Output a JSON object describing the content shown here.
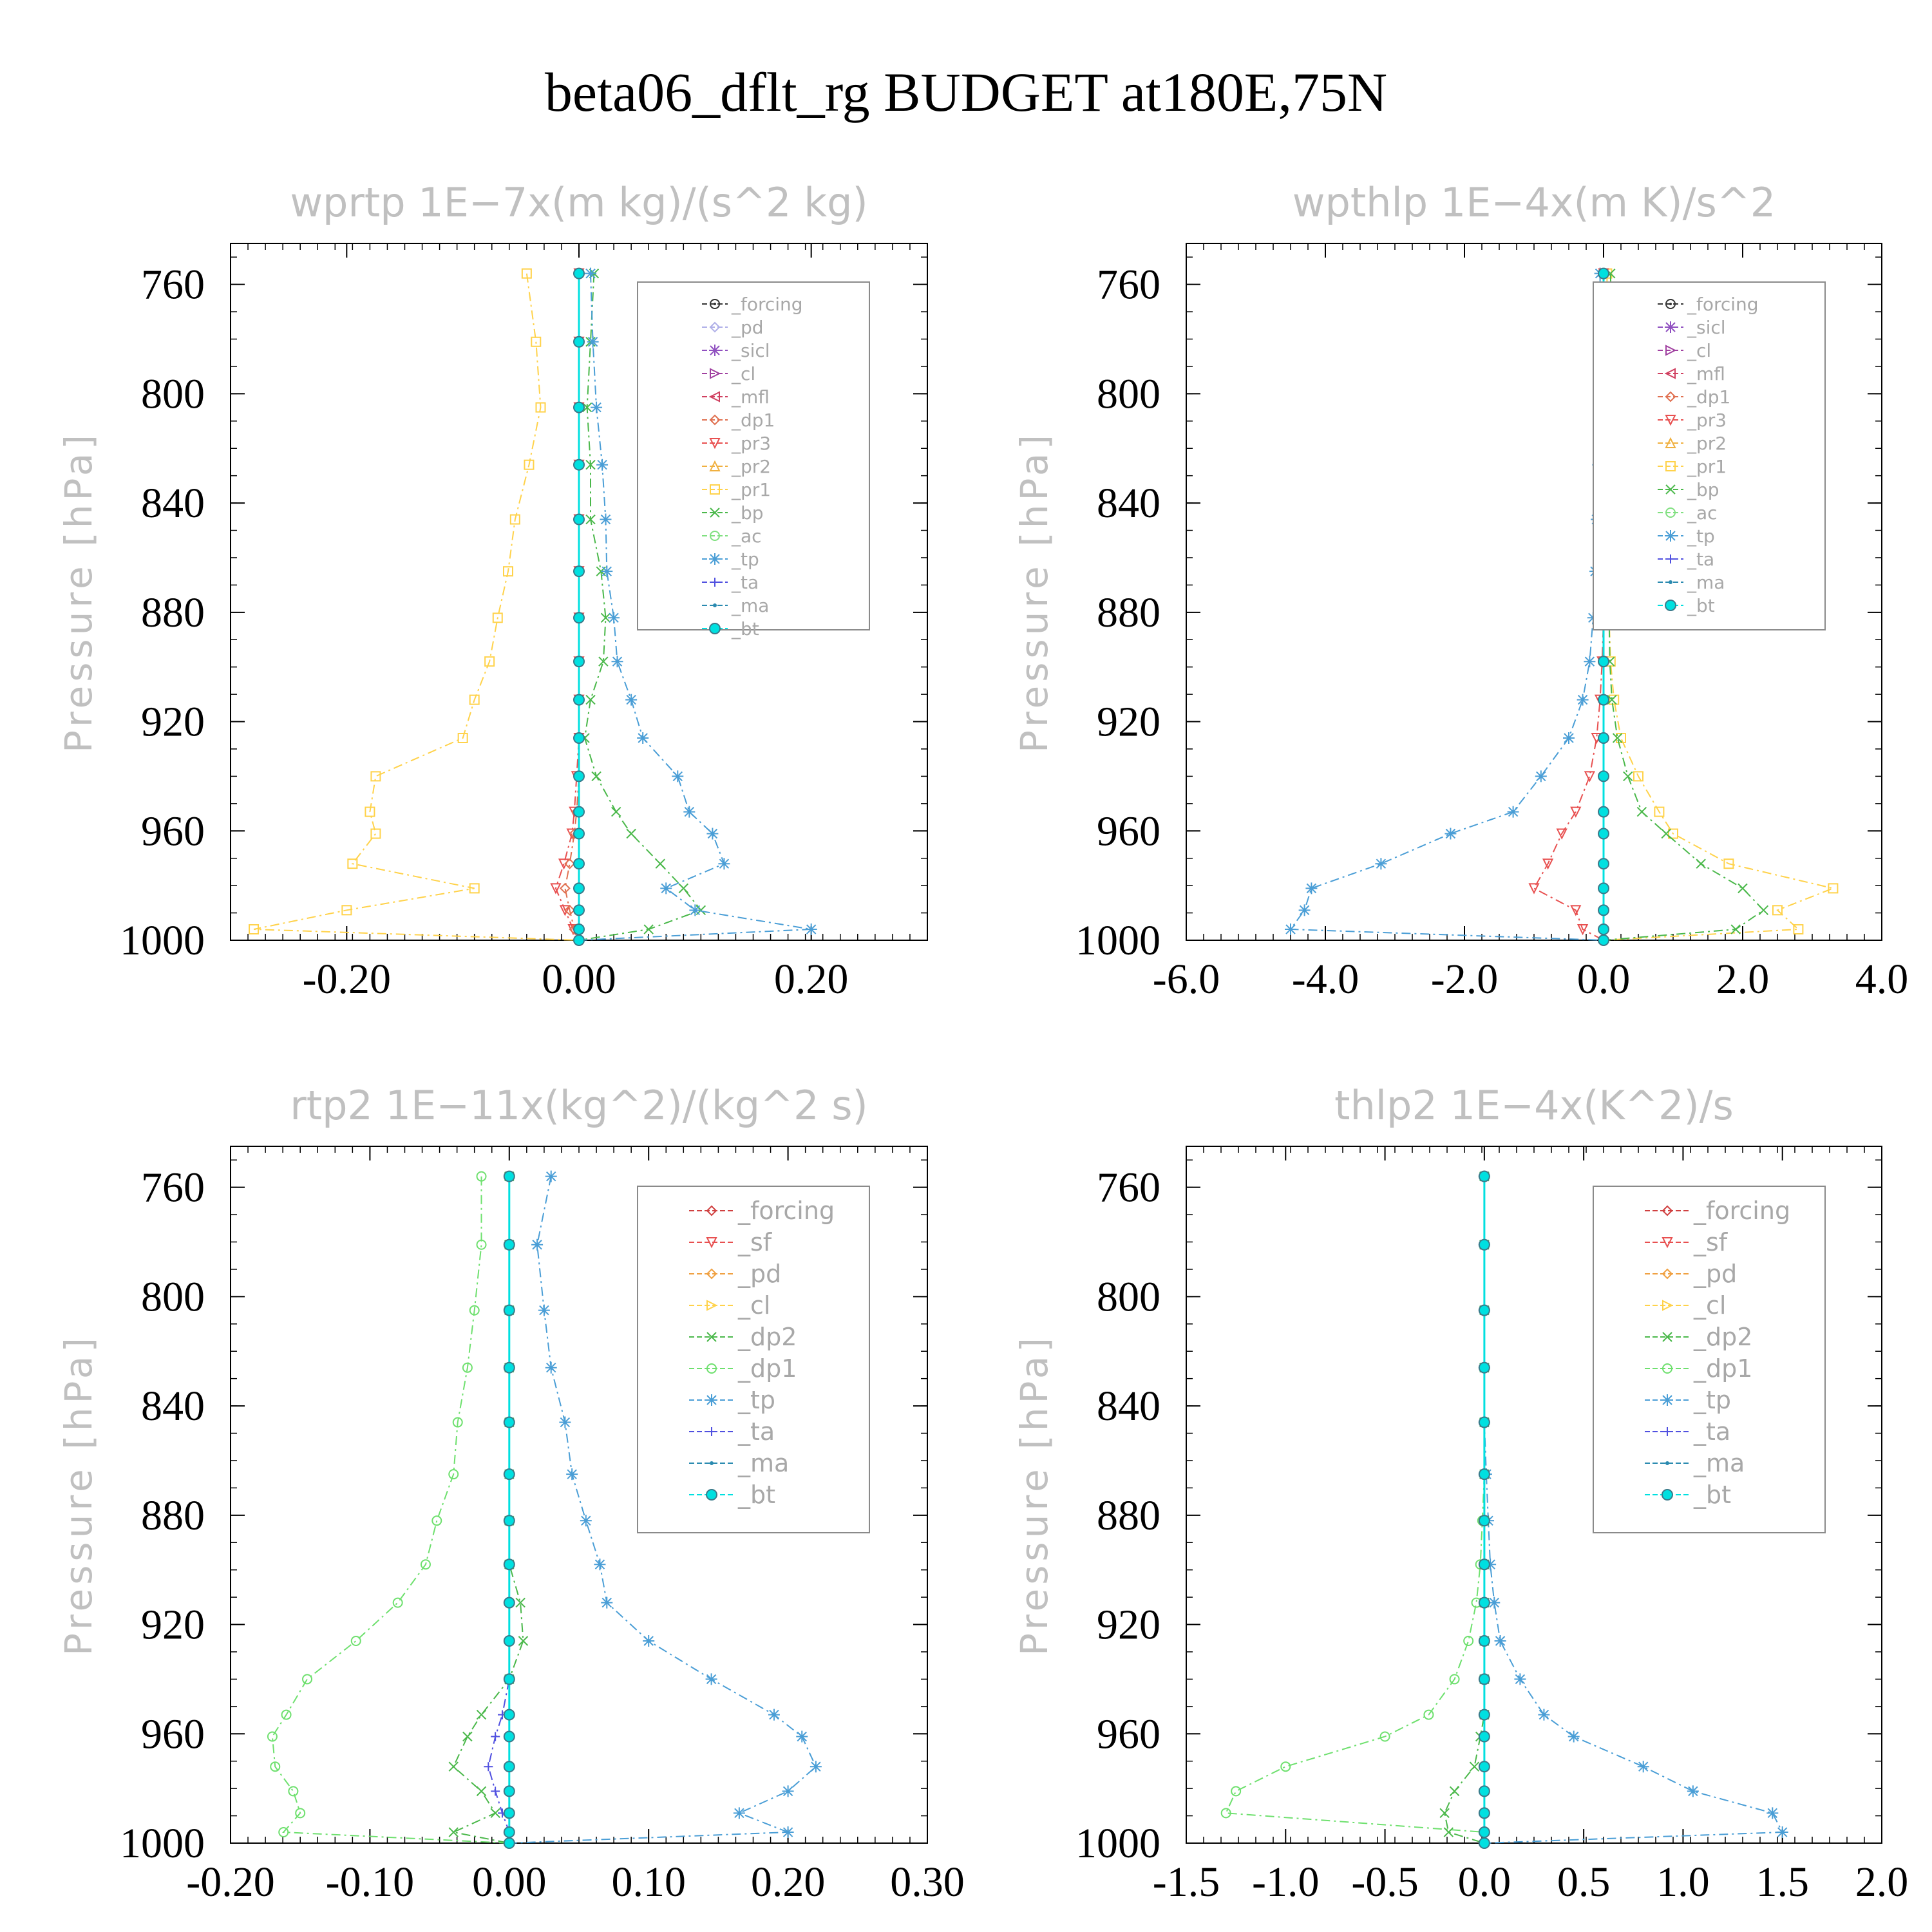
{
  "figure_title": "beta06_dflt_rg  BUDGET at180E,75N",
  "chart_data": [
    {
      "type": "line",
      "title": "wprtp   1E−7x(m kg)/(s^2 kg)",
      "ylabel": "Pressure  [hPa]",
      "xlim": [
        -0.3,
        0.3
      ],
      "ylim": [
        1000,
        745
      ],
      "xticks": [
        "-0.20",
        "0.00",
        "0.20"
      ],
      "xtick_values": [
        -0.2,
        0.0,
        0.2
      ],
      "yticks": [
        "760",
        "800",
        "840",
        "880",
        "920",
        "960",
        "1000"
      ],
      "ytick_values": [
        760,
        800,
        840,
        880,
        920,
        960,
        1000
      ],
      "y": [
        756,
        781,
        805,
        826,
        846,
        865,
        882,
        898,
        912,
        926,
        940,
        953,
        961,
        972,
        981,
        989,
        996,
        1000
      ],
      "legend_entries": [
        "_forcing",
        "_pd",
        "_sicl",
        "_cl",
        "_mfl",
        "_dp1",
        "_pr3",
        "_pr2",
        "_pr1",
        "_bp",
        "_ac",
        "_tp",
        "_ta",
        "_ma",
        "_bt"
      ],
      "series": [
        {
          "name": "_pr1",
          "color": "#ffd24a",
          "marker": "square",
          "values": [
            -0.045,
            -0.037,
            -0.033,
            -0.043,
            -0.055,
            -0.061,
            -0.07,
            -0.077,
            -0.09,
            -0.1,
            -0.175,
            -0.18,
            -0.175,
            -0.195,
            -0.09,
            -0.2,
            -0.28,
            0
          ]
        },
        {
          "name": "_bp",
          "color": "#4ab84a",
          "marker": "x",
          "values": [
            0.013,
            0.01,
            0.007,
            0.01,
            0.01,
            0.019,
            0.023,
            0.021,
            0.01,
            0.005,
            0.015,
            0.032,
            0.045,
            0.07,
            0.09,
            0.105,
            0.06,
            0
          ]
        },
        {
          "name": "_tp",
          "color": "#4a9ed6",
          "marker": "asterisk",
          "values": [
            0.01,
            0.012,
            0.015,
            0.02,
            0.023,
            0.024,
            0.03,
            0.033,
            0.045,
            0.055,
            0.085,
            0.095,
            0.115,
            0.125,
            0.075,
            0.1,
            0.2,
            0
          ]
        },
        {
          "name": "_pr3",
          "color": "#e85050",
          "marker": "triangle-down",
          "values": [
            0,
            0,
            0,
            0,
            0,
            0,
            0,
            0,
            0,
            0,
            -0.002,
            -0.004,
            -0.006,
            -0.013,
            -0.02,
            -0.012,
            -0.005,
            0
          ]
        },
        {
          "name": "_dp1",
          "color": "#e07050",
          "marker": "diamond",
          "values": [
            0,
            0,
            0,
            0,
            0,
            0,
            0,
            0,
            0,
            0,
            0,
            -0.002,
            -0.004,
            -0.008,
            -0.012,
            -0.008,
            -0.004,
            0
          ]
        },
        {
          "name": "_forcing",
          "color": "#222222",
          "marker": "circle-dot",
          "values": [
            0,
            0,
            0,
            0,
            0,
            0,
            0,
            0,
            0,
            0,
            0,
            0,
            0,
            0,
            0,
            0,
            0,
            0
          ]
        },
        {
          "name": "_bt",
          "color": "#00e0e0",
          "marker": "filled-circle",
          "values": [
            0,
            0,
            0,
            0,
            0,
            0,
            0,
            0,
            0,
            0,
            0,
            0,
            0,
            0,
            0,
            0,
            0,
            0
          ]
        }
      ]
    },
    {
      "type": "line",
      "title": "wpthlp   1E−4x(m K)/s^2",
      "ylabel": "Pressure  [hPa]",
      "xlim": [
        -6.0,
        4.0
      ],
      "ylim": [
        1000,
        745
      ],
      "xticks": [
        "-6.0",
        "-4.0",
        "-2.0",
        "0.0",
        "2.0",
        "4.0"
      ],
      "xtick_values": [
        -6,
        -4,
        -2,
        0,
        2,
        4
      ],
      "yticks": [
        "760",
        "800",
        "840",
        "880",
        "920",
        "960",
        "1000"
      ],
      "ytick_values": [
        760,
        800,
        840,
        880,
        920,
        960,
        1000
      ],
      "y": [
        756,
        781,
        805,
        826,
        846,
        865,
        882,
        898,
        912,
        926,
        940,
        953,
        961,
        972,
        981,
        989,
        996,
        1000
      ],
      "legend_entries": [
        "_forcing",
        "_sicl",
        "_cl",
        "_mfl",
        "_dp1",
        "_pr3",
        "_pr2",
        "_pr1",
        "_bp",
        "_ac",
        "_tp",
        "_ta",
        "_ma",
        "_bt"
      ],
      "series": [
        {
          "name": "_tp",
          "color": "#4a9ed6",
          "marker": "asterisk",
          "values": [
            -0.05,
            -0.05,
            -0.05,
            -0.08,
            -0.1,
            -0.12,
            -0.15,
            -0.2,
            -0.3,
            -0.5,
            -0.9,
            -1.3,
            -2.2,
            -3.2,
            -4.2,
            -4.3,
            -4.5,
            0
          ]
        },
        {
          "name": "_pr1",
          "color": "#ffd24a",
          "marker": "square",
          "values": [
            0.05,
            0.05,
            0.05,
            0.05,
            0.05,
            0.06,
            0.08,
            0.1,
            0.15,
            0.25,
            0.5,
            0.8,
            1.0,
            1.8,
            3.3,
            2.5,
            2.8,
            0
          ]
        },
        {
          "name": "_bp",
          "color": "#4ab84a",
          "marker": "x",
          "values": [
            0.1,
            0.12,
            0.1,
            0.1,
            0.08,
            0.08,
            0.08,
            0.09,
            0.12,
            0.2,
            0.35,
            0.55,
            0.9,
            1.4,
            2.0,
            2.3,
            1.9,
            0
          ]
        },
        {
          "name": "_pr3",
          "color": "#e85050",
          "marker": "triangle-down",
          "values": [
            0,
            0,
            0,
            0,
            0,
            0,
            0,
            -0.02,
            -0.05,
            -0.1,
            -0.2,
            -0.4,
            -0.6,
            -0.8,
            -1.0,
            -0.4,
            -0.3,
            0
          ]
        },
        {
          "name": "_bt",
          "color": "#00e0e0",
          "marker": "filled-circle",
          "values": [
            0,
            0,
            0,
            0,
            0,
            0,
            0,
            0,
            0,
            0,
            0,
            0,
            0,
            0,
            0,
            0,
            0,
            0
          ]
        }
      ]
    },
    {
      "type": "line",
      "title": "rtp2   1E−11x(kg^2)/(kg^2 s)",
      "ylabel": "Pressure  [hPa]",
      "xlim": [
        -0.2,
        0.3
      ],
      "ylim": [
        1000,
        745
      ],
      "xticks": [
        "-0.20",
        "-0.10",
        "0.00",
        "0.10",
        "0.20",
        "0.30"
      ],
      "xtick_values": [
        -0.2,
        -0.1,
        0.0,
        0.1,
        0.2,
        0.3
      ],
      "yticks": [
        "760",
        "800",
        "840",
        "880",
        "920",
        "960",
        "1000"
      ],
      "ytick_values": [
        760,
        800,
        840,
        880,
        920,
        960,
        1000
      ],
      "y": [
        756,
        781,
        805,
        826,
        846,
        865,
        882,
        898,
        912,
        926,
        940,
        953,
        961,
        972,
        981,
        989,
        996,
        1000
      ],
      "legend_entries": [
        "_forcing",
        "_sf",
        "_pd",
        "_cl",
        "_dp2",
        "_dp1",
        "_tp",
        "_ta",
        "_ma",
        "_bt"
      ],
      "series": [
        {
          "name": "_dp1",
          "color": "#6ee06e",
          "marker": "circle",
          "values": [
            -0.02,
            -0.02,
            -0.025,
            -0.03,
            -0.037,
            -0.04,
            -0.052,
            -0.06,
            -0.08,
            -0.11,
            -0.145,
            -0.16,
            -0.17,
            -0.168,
            -0.155,
            -0.15,
            -0.162,
            0
          ]
        },
        {
          "name": "_tp",
          "color": "#4a9ed6",
          "marker": "asterisk",
          "values": [
            0.03,
            0.02,
            0.025,
            0.03,
            0.04,
            0.045,
            0.055,
            0.065,
            0.07,
            0.1,
            0.145,
            0.19,
            0.21,
            0.22,
            0.2,
            0.165,
            0.2,
            0
          ]
        },
        {
          "name": "_dp2",
          "color": "#4ab84a",
          "marker": "x",
          "values": [
            0,
            0,
            0,
            0,
            0,
            0,
            0,
            0,
            0.008,
            0.01,
            0,
            -0.02,
            -0.03,
            -0.04,
            -0.02,
            -0.01,
            -0.04,
            0
          ]
        },
        {
          "name": "_ta",
          "color": "#5050e0",
          "marker": "plus",
          "values": [
            0,
            0,
            0,
            0,
            0,
            0,
            0,
            0,
            0,
            0,
            0,
            -0.005,
            -0.01,
            -0.015,
            -0.01,
            -0.005,
            0,
            0
          ]
        },
        {
          "name": "_bt",
          "color": "#00e0e0",
          "marker": "filled-circle",
          "values": [
            0,
            0,
            0,
            0,
            0,
            0,
            0,
            0,
            0,
            0,
            0,
            0,
            0,
            0,
            0,
            0,
            0,
            0
          ]
        }
      ]
    },
    {
      "type": "line",
      "title": "thlp2   1E−4x(K^2)/s",
      "ylabel": "Pressure  [hPa]",
      "xlim": [
        -1.5,
        2.0
      ],
      "ylim": [
        1000,
        745
      ],
      "xticks": [
        "-1.5",
        "-1.0",
        "-0.5",
        "0.0",
        "0.5",
        "1.0",
        "1.5",
        "2.0"
      ],
      "xtick_values": [
        -1.5,
        -1.0,
        -0.5,
        0.0,
        0.5,
        1.0,
        1.5,
        2.0
      ],
      "yticks": [
        "760",
        "800",
        "840",
        "880",
        "920",
        "960",
        "1000"
      ],
      "ytick_values": [
        760,
        800,
        840,
        880,
        920,
        960,
        1000
      ],
      "y": [
        756,
        781,
        805,
        826,
        846,
        865,
        882,
        898,
        912,
        926,
        940,
        953,
        961,
        972,
        981,
        989,
        996,
        1000
      ],
      "legend_entries": [
        "_forcing",
        "_sf",
        "_pd",
        "_cl",
        "_dp2",
        "_dp1",
        "_tp",
        "_ta",
        "_ma",
        "_bt"
      ],
      "series": [
        {
          "name": "_dp1",
          "color": "#6ee06e",
          "marker": "circle",
          "values": [
            0,
            0,
            0,
            0,
            0,
            0,
            -0.01,
            -0.02,
            -0.04,
            -0.08,
            -0.15,
            -0.28,
            -0.5,
            -1.0,
            -1.25,
            -1.3,
            0,
            0
          ]
        },
        {
          "name": "_tp",
          "color": "#4a9ed6",
          "marker": "asterisk",
          "values": [
            0,
            0,
            0,
            0,
            0,
            0.01,
            0.02,
            0.03,
            0.05,
            0.08,
            0.18,
            0.3,
            0.45,
            0.8,
            1.05,
            1.45,
            1.5,
            0
          ]
        },
        {
          "name": "_dp2",
          "color": "#4ab84a",
          "marker": "x",
          "values": [
            0,
            0,
            0,
            0,
            0,
            0,
            0,
            0,
            0,
            0,
            0,
            0,
            -0.02,
            -0.05,
            -0.15,
            -0.2,
            -0.18,
            0
          ]
        },
        {
          "name": "_bt",
          "color": "#00e0e0",
          "marker": "filled-circle",
          "values": [
            0,
            0,
            0,
            0,
            0,
            0,
            0,
            0,
            0,
            0,
            0,
            0,
            0,
            0,
            0,
            0,
            0,
            0
          ]
        }
      ]
    }
  ]
}
